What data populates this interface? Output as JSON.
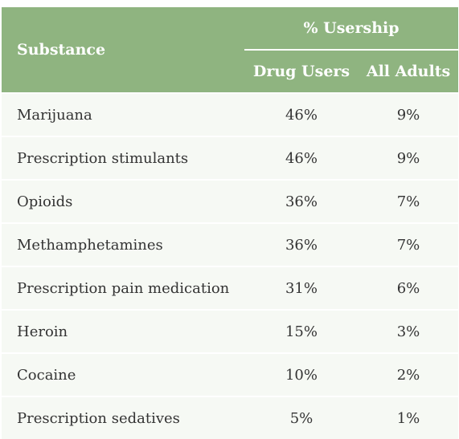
{
  "table": {
    "substance_header": "Substance",
    "group_header": "% Usership",
    "columns": [
      "Drug Users",
      "All Adults"
    ],
    "rows": [
      {
        "substance": "Marijuana",
        "drug_users": "46%",
        "all_adults": "9%"
      },
      {
        "substance": "Prescription stimulants",
        "drug_users": "46%",
        "all_adults": "9%"
      },
      {
        "substance": "Opioids",
        "drug_users": "36%",
        "all_adults": "7%"
      },
      {
        "substance": "Methamphetamines",
        "drug_users": "36%",
        "all_adults": "7%"
      },
      {
        "substance": "Prescription pain medication",
        "drug_users": "31%",
        "all_adults": "6%"
      },
      {
        "substance": "Heroin",
        "drug_users": "15%",
        "all_adults": "3%"
      },
      {
        "substance": "Cocaine",
        "drug_users": "10%",
        "all_adults": "2%"
      },
      {
        "substance": "Prescription sedatives",
        "drug_users": "5%",
        "all_adults": "1%"
      }
    ]
  },
  "colors": {
    "header_bg": "#8fb480",
    "row_bg": "#f6f9f4",
    "text": "#333333"
  }
}
